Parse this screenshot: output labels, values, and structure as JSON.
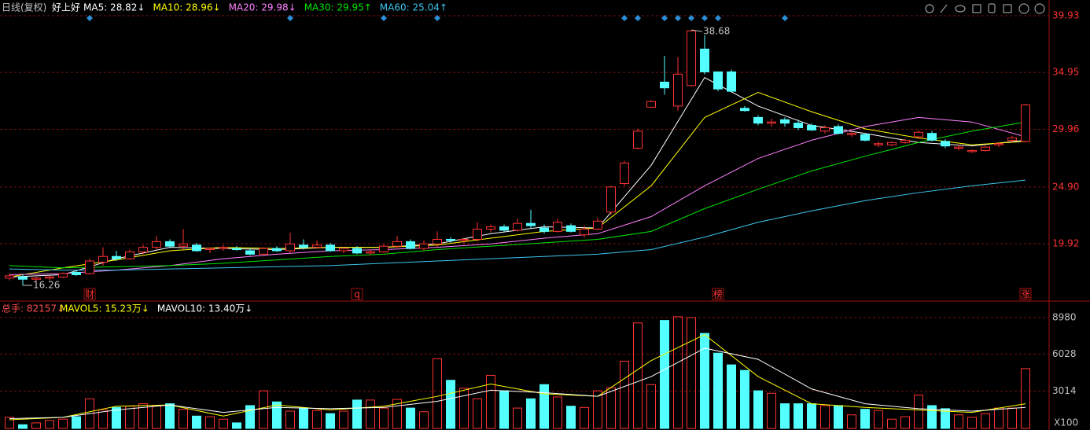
{
  "chart_data": {
    "type": "candlestick",
    "period_label": "日线(复权)",
    "stock_name": "好上好",
    "ylim": [
      15.09,
      40.48
    ],
    "yticks": [
      39.93,
      34.95,
      29.96,
      {
        "value": 24.9,
        "label": "24.90"
      },
      19.92
    ],
    "grid": true,
    "up_color": "#ff3232",
    "down_color": "#54ffff",
    "open": [
      16.9,
      17.0,
      16.8,
      16.9,
      17.0,
      17.4,
      17.3,
      18.3,
      18.8,
      18.6,
      19.2,
      19.6,
      20.1,
      19.7,
      19.8,
      19.4,
      19.5,
      19.5,
      19.3,
      19.0,
      19.5,
      19.3,
      19.8,
      19.6,
      19.8,
      19.3,
      19.5,
      19.1,
      19.2,
      19.7,
      20.1,
      19.5,
      19.9,
      20.3,
      20.2,
      20.3,
      21.2,
      21.4,
      21.1,
      21.7,
      21.3,
      21.0,
      21.5,
      20.7,
      21.2,
      22.7,
      25.2,
      28.3,
      31.9,
      34.1,
      32.0,
      33.8,
      37.0,
      35.0,
      35.0,
      31.8,
      31.0,
      30.5,
      30.8,
      30.5,
      30.3,
      29.8,
      30.2,
      29.5,
      29.5,
      28.6,
      28.6,
      28.8,
      29.3,
      29.6,
      28.9,
      28.3,
      28.0,
      28.1,
      28.6,
      29.0,
      28.9
    ],
    "high": [
      17.3,
      17.2,
      17.0,
      17.1,
      17.4,
      17.6,
      18.6,
      19.6,
      19.3,
      19.4,
      19.8,
      20.6,
      20.3,
      21.2,
      20.0,
      19.6,
      19.8,
      19.7,
      19.5,
      19.6,
      19.7,
      20.9,
      20.3,
      20.2,
      20.0,
      19.6,
      19.7,
      19.4,
      19.9,
      20.6,
      20.3,
      20.2,
      21.0,
      20.5,
      20.4,
      21.8,
      21.6,
      21.6,
      22.1,
      22.9,
      21.6,
      22.1,
      21.7,
      21.5,
      22.2,
      25.0,
      27.2,
      30.0,
      32.5,
      36.4,
      36.3,
      38.68,
      38.2,
      35.0,
      35.2,
      32.0,
      31.2,
      30.9,
      31.0,
      30.8,
      30.5,
      30.3,
      30.4,
      29.8,
      29.6,
      28.9,
      28.9,
      29.1,
      29.9,
      29.8,
      29.1,
      28.6,
      28.2,
      28.5,
      28.8,
      29.4,
      32.2
    ],
    "low": [
      16.7,
      16.26,
      16.6,
      16.7,
      16.9,
      17.1,
      17.2,
      18.0,
      18.4,
      18.5,
      19.0,
      19.4,
      19.6,
      19.4,
      19.2,
      19.1,
      19.3,
      19.3,
      18.9,
      18.9,
      19.2,
      19.1,
      19.4,
      19.5,
      19.2,
      19.1,
      19.0,
      18.9,
      19.1,
      19.6,
      19.4,
      19.3,
      19.6,
      20.0,
      19.9,
      20.1,
      20.9,
      21.0,
      21.0,
      21.3,
      20.8,
      20.9,
      20.9,
      20.5,
      21.1,
      22.5,
      25.0,
      28.2,
      31.9,
      33.0,
      31.6,
      33.7,
      34.8,
      33.3,
      33.2,
      31.5,
      30.3,
      30.2,
      30.2,
      29.9,
      29.8,
      29.6,
      29.5,
      29.3,
      28.9,
      28.4,
      28.5,
      28.7,
      29.1,
      28.9,
      28.3,
      28.1,
      27.9,
      28.0,
      28.4,
      28.8,
      28.8
    ],
    "close": [
      17.1,
      16.8,
      16.9,
      17.0,
      17.3,
      17.2,
      18.4,
      18.8,
      18.6,
      19.2,
      19.6,
      20.1,
      19.7,
      19.9,
      19.3,
      19.5,
      19.6,
      19.4,
      19.0,
      19.5,
      19.3,
      19.9,
      19.6,
      19.8,
      19.3,
      19.5,
      19.1,
      19.2,
      19.7,
      20.1,
      19.5,
      19.9,
      20.3,
      20.2,
      20.3,
      21.2,
      21.4,
      21.1,
      21.7,
      21.5,
      21.0,
      21.8,
      21.0,
      21.2,
      21.9,
      24.9,
      27.0,
      29.8,
      32.4,
      33.6,
      34.8,
      38.6,
      35.0,
      33.5,
      33.3,
      31.6,
      30.5,
      30.6,
      30.5,
      30.1,
      29.9,
      30.1,
      29.6,
      29.6,
      29.0,
      28.7,
      28.8,
      29.0,
      29.7,
      29.0,
      28.5,
      28.4,
      28.1,
      28.4,
      28.7,
      29.2,
      32.1
    ],
    "ma_x": [
      0,
      4,
      8,
      12,
      16,
      20,
      24,
      28,
      32,
      36,
      40,
      44,
      48,
      52,
      56,
      60,
      64,
      68,
      72,
      76
    ],
    "ma_series": [
      {
        "label": "MA5: 28.82↓",
        "color": "#ffffff",
        "values": [
          17.0,
          17.2,
          18.6,
          19.6,
          19.5,
          19.4,
          19.6,
          19.6,
          19.9,
          20.8,
          21.4,
          21.3,
          26.8,
          34.5,
          32.0,
          30.3,
          29.6,
          28.8,
          28.5,
          29.0
        ]
      },
      {
        "label": "MA10: 28.96↓",
        "color": "#ffff00",
        "values": [
          17.0,
          17.8,
          18.5,
          19.3,
          19.6,
          19.5,
          19.6,
          19.6,
          19.8,
          20.4,
          21.0,
          21.3,
          25.0,
          31.0,
          33.2,
          31.5,
          30.0,
          29.2,
          28.6,
          28.9
        ]
      },
      {
        "label": "MA20: 29.98↓",
        "color": "#ff80ff",
        "values": [
          17.2,
          17.3,
          17.6,
          18.0,
          18.6,
          19.0,
          19.3,
          19.4,
          19.6,
          19.9,
          20.4,
          20.8,
          22.3,
          25.0,
          27.4,
          29.0,
          30.2,
          31.0,
          30.6,
          29.3
        ]
      },
      {
        "label": "MA30: 29.95↑",
        "color": "#00e600",
        "values": [
          18.0,
          17.8,
          17.9,
          18.0,
          18.2,
          18.5,
          18.8,
          19.0,
          19.4,
          19.7,
          20.0,
          20.3,
          21.0,
          23.0,
          24.7,
          26.3,
          27.6,
          28.8,
          29.8,
          30.6
        ]
      },
      {
        "label": "MA60: 25.04↑",
        "color": "#3ec6ee",
        "values": [
          17.7,
          17.6,
          17.6,
          17.7,
          17.8,
          17.9,
          18.0,
          18.2,
          18.4,
          18.6,
          18.8,
          19.0,
          19.4,
          20.5,
          21.8,
          22.8,
          23.7,
          24.4,
          25.0,
          25.5
        ]
      }
    ],
    "event_markers": [
      6,
      21,
      28,
      32,
      46,
      47,
      49,
      50,
      51,
      52,
      53,
      58
    ],
    "bottom_labels": [
      {
        "index": 6,
        "text": "财"
      },
      {
        "index": 26,
        "text": "q"
      },
      {
        "index": 53,
        "text": "榜"
      },
      {
        "index": 76,
        "text": "涨"
      }
    ],
    "volume_header": "总手: 82157↓",
    "volume": [
      900,
      300,
      450,
      650,
      750,
      950,
      2400,
      1500,
      1700,
      1800,
      2000,
      1850,
      2000,
      1550,
      1000,
      950,
      750,
      450,
      1850,
      3050,
      2150,
      1400,
      1600,
      1450,
      1200,
      1400,
      2300,
      2300,
      1650,
      2350,
      1650,
      1350,
      5650,
      3900,
      3250,
      2400,
      4300,
      3050,
      1650,
      2400,
      3550,
      2550,
      1800,
      1700,
      3050,
      3300,
      5450,
      8550,
      3550,
      8750,
      9050,
      8980,
      7700,
      6100,
      5150,
      4700,
      3050,
      2850,
      2000,
      2000,
      2000,
      1850,
      1850,
      1100,
      1550,
      1450,
      750,
      950,
      2700,
      1850,
      1600,
      1100,
      900,
      1200,
      1650,
      1650,
      4850
    ],
    "vol_ylim": [
      0,
      10000
    ],
    "vol_yticks": [
      8980,
      6028,
      3014
    ],
    "vol_unit": "X100",
    "vol_ma_series": [
      {
        "label": "MAVOL5: 15.23万↓",
        "color": "#ffff00",
        "values": [
          700,
          900,
          1800,
          1900,
          1000,
          1900,
          1500,
          1800,
          2600,
          3600,
          2800,
          2600,
          5500,
          7600,
          4200,
          2000,
          1700,
          1500,
          1300,
          2000
        ]
      },
      {
        "label": "MAVOL10: 13.40万↓",
        "color": "#ffffff",
        "values": [
          800,
          900,
          1500,
          1900,
          1300,
          1700,
          1600,
          1700,
          2200,
          3100,
          2900,
          2600,
          4200,
          6500,
          5600,
          3200,
          2000,
          1600,
          1400,
          1700
        ]
      }
    ]
  }
}
